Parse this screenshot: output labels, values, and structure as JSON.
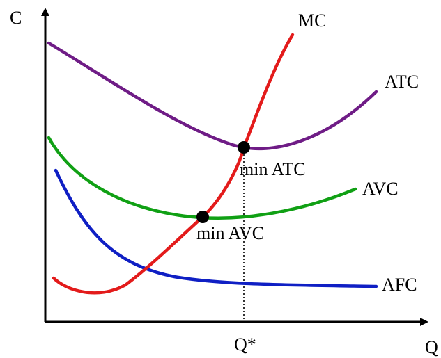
{
  "axes": {
    "y_label": "C",
    "x_label": "Q"
  },
  "curves": {
    "mc": {
      "label": "MC",
      "color": "#e31b1b"
    },
    "atc": {
      "label": "ATC",
      "color": "#6f1c86"
    },
    "avc": {
      "label": "AVC",
      "color": "#10a014"
    },
    "afc": {
      "label": "AFC",
      "color": "#0f1fc4"
    }
  },
  "points": {
    "min_atc": {
      "label": "min ATC"
    },
    "min_avc": {
      "label": "min AVC"
    }
  },
  "q_star": {
    "label": "Q*"
  },
  "colors": {
    "axis": "#000000",
    "point": "#000000"
  }
}
